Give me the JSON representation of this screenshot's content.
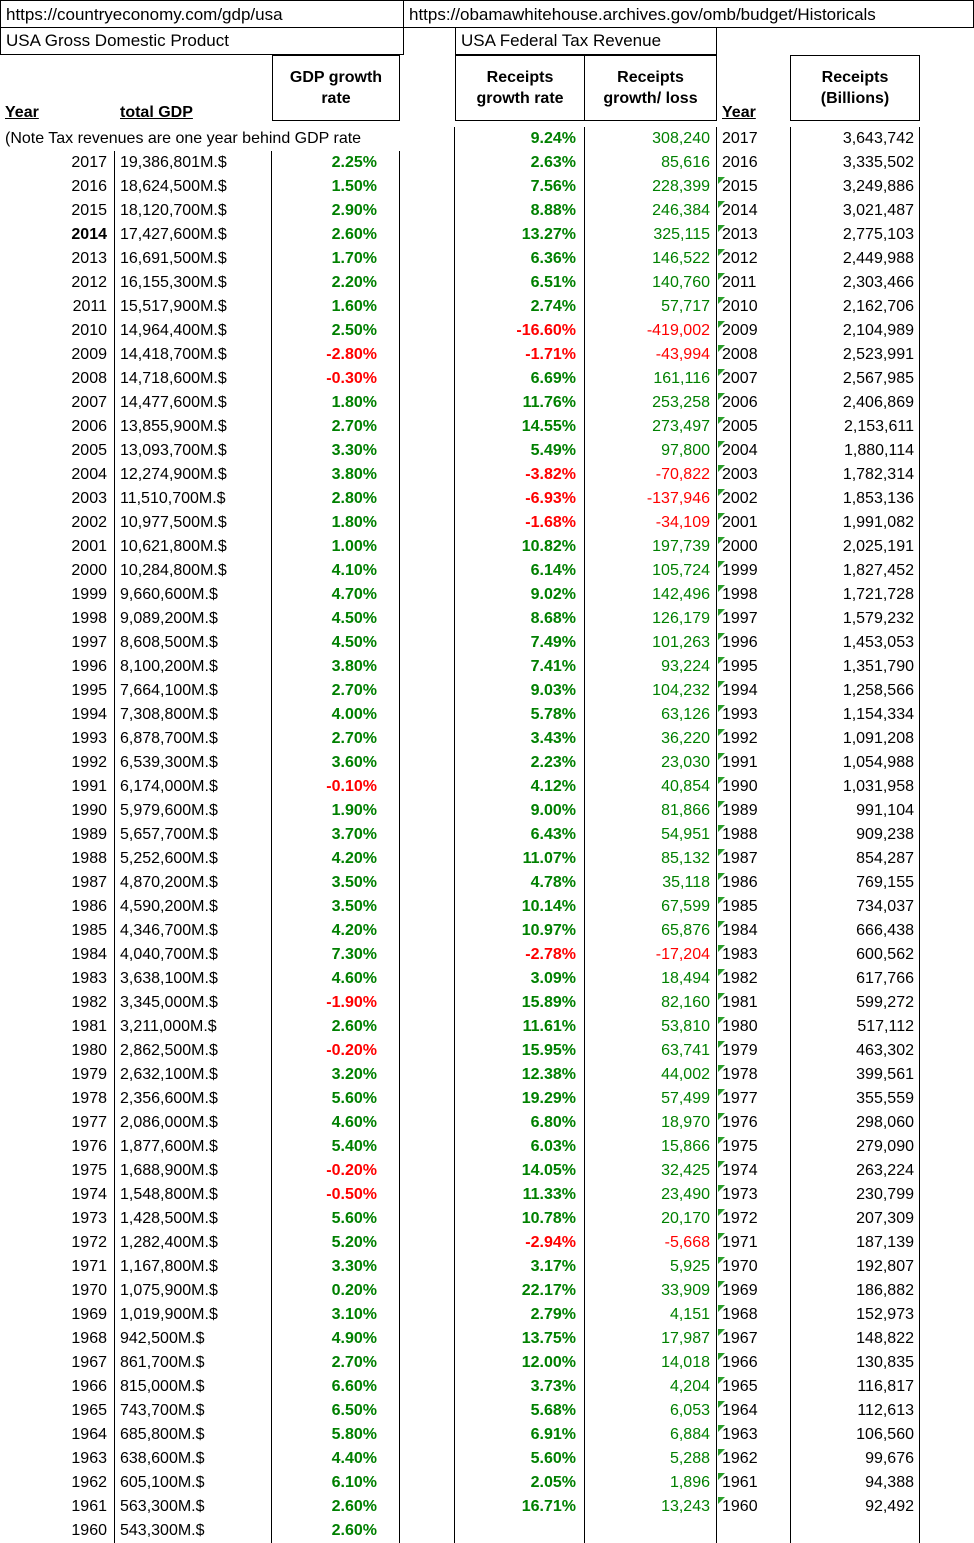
{
  "sources": {
    "gdp_url": "https://countryeconomy.com/gdp/usa",
    "tax_url": "https://obamawhitehouse.archives.gov/omb/budget/Historicals"
  },
  "colors": {
    "positive": "#008000",
    "negative": "#ff0000",
    "flag_indicator": "#2ca02c",
    "grid": "#000000"
  },
  "left_table": {
    "title": "USA Gross Domestic Product",
    "headers": {
      "year": "Year",
      "gdp": "total GDP",
      "growth": "GDP growth\nrate"
    },
    "note": "(Note Tax revenues are one year behind GDP rate",
    "rows": [
      {
        "year": "2017",
        "gdp": "19,386,801M.$",
        "rate": "2.25%"
      },
      {
        "year": "2016",
        "gdp": "18,624,500M.$",
        "rate": "1.50%"
      },
      {
        "year": "2015",
        "gdp": "18,120,700M.$",
        "rate": "2.90%"
      },
      {
        "year": "2014",
        "gdp": "17,427,600M.$",
        "rate": "2.60%",
        "bold": true
      },
      {
        "year": "2013",
        "gdp": "16,691,500M.$",
        "rate": "1.70%"
      },
      {
        "year": "2012",
        "gdp": "16,155,300M.$",
        "rate": "2.20%"
      },
      {
        "year": "2011",
        "gdp": "15,517,900M.$",
        "rate": "1.60%"
      },
      {
        "year": "2010",
        "gdp": "14,964,400M.$",
        "rate": "2.50%"
      },
      {
        "year": "2009",
        "gdp": "14,418,700M.$",
        "rate": "-2.80%"
      },
      {
        "year": "2008",
        "gdp": "14,718,600M.$",
        "rate": "-0.30%"
      },
      {
        "year": "2007",
        "gdp": "14,477,600M.$",
        "rate": "1.80%"
      },
      {
        "year": "2006",
        "gdp": "13,855,900M.$",
        "rate": "2.70%"
      },
      {
        "year": "2005",
        "gdp": "13,093,700M.$",
        "rate": "3.30%"
      },
      {
        "year": "2004",
        "gdp": "12,274,900M.$",
        "rate": "3.80%"
      },
      {
        "year": "2003",
        "gdp": "11,510,700M.$",
        "rate": "2.80%"
      },
      {
        "year": "2002",
        "gdp": "10,977,500M.$",
        "rate": "1.80%"
      },
      {
        "year": "2001",
        "gdp": "10,621,800M.$",
        "rate": "1.00%"
      },
      {
        "year": "2000",
        "gdp": "10,284,800M.$",
        "rate": "4.10%"
      },
      {
        "year": "1999",
        "gdp": "9,660,600M.$",
        "rate": "4.70%"
      },
      {
        "year": "1998",
        "gdp": "9,089,200M.$",
        "rate": "4.50%"
      },
      {
        "year": "1997",
        "gdp": "8,608,500M.$",
        "rate": "4.50%"
      },
      {
        "year": "1996",
        "gdp": "8,100,200M.$",
        "rate": "3.80%"
      },
      {
        "year": "1995",
        "gdp": "7,664,100M.$",
        "rate": "2.70%"
      },
      {
        "year": "1994",
        "gdp": "7,308,800M.$",
        "rate": "4.00%"
      },
      {
        "year": "1993",
        "gdp": "6,878,700M.$",
        "rate": "2.70%"
      },
      {
        "year": "1992",
        "gdp": "6,539,300M.$",
        "rate": "3.60%"
      },
      {
        "year": "1991",
        "gdp": "6,174,000M.$",
        "rate": "-0.10%"
      },
      {
        "year": "1990",
        "gdp": "5,979,600M.$",
        "rate": "1.90%"
      },
      {
        "year": "1989",
        "gdp": "5,657,700M.$",
        "rate": "3.70%"
      },
      {
        "year": "1988",
        "gdp": "5,252,600M.$",
        "rate": "4.20%"
      },
      {
        "year": "1987",
        "gdp": "4,870,200M.$",
        "rate": "3.50%"
      },
      {
        "year": "1986",
        "gdp": "4,590,200M.$",
        "rate": "3.50%"
      },
      {
        "year": "1985",
        "gdp": "4,346,700M.$",
        "rate": "4.20%"
      },
      {
        "year": "1984",
        "gdp": "4,040,700M.$",
        "rate": "7.30%"
      },
      {
        "year": "1983",
        "gdp": "3,638,100M.$",
        "rate": "4.60%"
      },
      {
        "year": "1982",
        "gdp": "3,345,000M.$",
        "rate": "-1.90%"
      },
      {
        "year": "1981",
        "gdp": "3,211,000M.$",
        "rate": "2.60%"
      },
      {
        "year": "1980",
        "gdp": "2,862,500M.$",
        "rate": "-0.20%"
      },
      {
        "year": "1979",
        "gdp": "2,632,100M.$",
        "rate": "3.20%"
      },
      {
        "year": "1978",
        "gdp": "2,356,600M.$",
        "rate": "5.60%"
      },
      {
        "year": "1977",
        "gdp": "2,086,000M.$",
        "rate": "4.60%"
      },
      {
        "year": "1976",
        "gdp": "1,877,600M.$",
        "rate": "5.40%"
      },
      {
        "year": "1975",
        "gdp": "1,688,900M.$",
        "rate": "-0.20%"
      },
      {
        "year": "1974",
        "gdp": "1,548,800M.$",
        "rate": "-0.50%"
      },
      {
        "year": "1973",
        "gdp": "1,428,500M.$",
        "rate": "5.60%"
      },
      {
        "year": "1972",
        "gdp": "1,282,400M.$",
        "rate": "5.20%"
      },
      {
        "year": "1971",
        "gdp": "1,167,800M.$",
        "rate": "3.30%"
      },
      {
        "year": "1970",
        "gdp": "1,075,900M.$",
        "rate": "0.20%"
      },
      {
        "year": "1969",
        "gdp": "1,019,900M.$",
        "rate": "3.10%"
      },
      {
        "year": "1968",
        "gdp": "942,500M.$",
        "rate": "4.90%"
      },
      {
        "year": "1967",
        "gdp": "861,700M.$",
        "rate": "2.70%"
      },
      {
        "year": "1966",
        "gdp": "815,000M.$",
        "rate": "6.60%"
      },
      {
        "year": "1965",
        "gdp": "743,700M.$",
        "rate": "6.50%"
      },
      {
        "year": "1964",
        "gdp": "685,800M.$",
        "rate": "5.80%"
      },
      {
        "year": "1963",
        "gdp": "638,600M.$",
        "rate": "4.40%"
      },
      {
        "year": "1962",
        "gdp": "605,100M.$",
        "rate": "6.10%"
      },
      {
        "year": "1961",
        "gdp": "563,300M.$",
        "rate": "2.60%"
      },
      {
        "year": "1960",
        "gdp": "543,300M.$",
        "rate": "2.60%"
      }
    ]
  },
  "right_table": {
    "title": "USA Federal Tax Revenue",
    "headers": {
      "rate": "Receipts\ngrowth rate",
      "loss": "Receipts\ngrowth/ loss",
      "year": "Year",
      "receipts": "Receipts\n(Billions)"
    },
    "rows": [
      {
        "rate": "9.24%",
        "loss": "308,240",
        "year": "2017",
        "receipts": "3,643,742",
        "flag": false
      },
      {
        "rate": "2.63%",
        "loss": "85,616",
        "year": "2016",
        "receipts": "3,335,502",
        "flag": false
      },
      {
        "rate": "7.56%",
        "loss": "228,399",
        "year": "2015",
        "receipts": "3,249,886",
        "flag": true
      },
      {
        "rate": "8.88%",
        "loss": "246,384",
        "year": "2014",
        "receipts": "3,021,487",
        "flag": true
      },
      {
        "rate": "13.27%",
        "loss": "325,115",
        "year": "2013",
        "receipts": "2,775,103",
        "flag": true
      },
      {
        "rate": "6.36%",
        "loss": "146,522",
        "year": "2012",
        "receipts": "2,449,988",
        "flag": true
      },
      {
        "rate": "6.51%",
        "loss": "140,760",
        "year": "2011",
        "receipts": "2,303,466",
        "flag": true
      },
      {
        "rate": "2.74%",
        "loss": "57,717",
        "year": "2010",
        "receipts": "2,162,706",
        "flag": true
      },
      {
        "rate": "-16.60%",
        "loss": "-419,002",
        "year": "2009",
        "receipts": "2,104,989",
        "flag": true
      },
      {
        "rate": "-1.71%",
        "loss": "-43,994",
        "year": "2008",
        "receipts": "2,523,991",
        "flag": true
      },
      {
        "rate": "6.69%",
        "loss": "161,116",
        "year": "2007",
        "receipts": "2,567,985",
        "flag": true
      },
      {
        "rate": "11.76%",
        "loss": "253,258",
        "year": "2006",
        "receipts": "2,406,869",
        "flag": true
      },
      {
        "rate": "14.55%",
        "loss": "273,497",
        "year": "2005",
        "receipts": "2,153,611",
        "flag": true
      },
      {
        "rate": "5.49%",
        "loss": "97,800",
        "year": "2004",
        "receipts": "1,880,114",
        "flag": true
      },
      {
        "rate": "-3.82%",
        "loss": "-70,822",
        "year": "2003",
        "receipts": "1,782,314",
        "flag": true
      },
      {
        "rate": "-6.93%",
        "loss": "-137,946",
        "year": "2002",
        "receipts": "1,853,136",
        "flag": true
      },
      {
        "rate": "-1.68%",
        "loss": "-34,109",
        "year": "2001",
        "receipts": "1,991,082",
        "flag": true
      },
      {
        "rate": "10.82%",
        "loss": "197,739",
        "year": "2000",
        "receipts": "2,025,191",
        "flag": true
      },
      {
        "rate": "6.14%",
        "loss": "105,724",
        "year": "1999",
        "receipts": "1,827,452",
        "flag": true
      },
      {
        "rate": "9.02%",
        "loss": "142,496",
        "year": "1998",
        "receipts": "1,721,728",
        "flag": true
      },
      {
        "rate": "8.68%",
        "loss": "126,179",
        "year": "1997",
        "receipts": "1,579,232",
        "flag": true
      },
      {
        "rate": "7.49%",
        "loss": "101,263",
        "year": "1996",
        "receipts": "1,453,053",
        "flag": true
      },
      {
        "rate": "7.41%",
        "loss": "93,224",
        "year": "1995",
        "receipts": "1,351,790",
        "flag": true
      },
      {
        "rate": "9.03%",
        "loss": "104,232",
        "year": "1994",
        "receipts": "1,258,566",
        "flag": true
      },
      {
        "rate": "5.78%",
        "loss": "63,126",
        "year": "1993",
        "receipts": "1,154,334",
        "flag": true
      },
      {
        "rate": "3.43%",
        "loss": "36,220",
        "year": "1992",
        "receipts": "1,091,208",
        "flag": true
      },
      {
        "rate": "2.23%",
        "loss": "23,030",
        "year": "1991",
        "receipts": "1,054,988",
        "flag": true
      },
      {
        "rate": "4.12%",
        "loss": "40,854",
        "year": "1990",
        "receipts": "1,031,958",
        "flag": true
      },
      {
        "rate": "9.00%",
        "loss": "81,866",
        "year": "1989",
        "receipts": "991,104",
        "flag": true
      },
      {
        "rate": "6.43%",
        "loss": "54,951",
        "year": "1988",
        "receipts": "909,238",
        "flag": true
      },
      {
        "rate": "11.07%",
        "loss": "85,132",
        "year": "1987",
        "receipts": "854,287",
        "flag": true
      },
      {
        "rate": "4.78%",
        "loss": "35,118",
        "year": "1986",
        "receipts": "769,155",
        "flag": true
      },
      {
        "rate": "10.14%",
        "loss": "67,599",
        "year": "1985",
        "receipts": "734,037",
        "flag": true
      },
      {
        "rate": "10.97%",
        "loss": "65,876",
        "year": "1984",
        "receipts": "666,438",
        "flag": true
      },
      {
        "rate": "-2.78%",
        "loss": "-17,204",
        "year": "1983",
        "receipts": "600,562",
        "flag": true
      },
      {
        "rate": "3.09%",
        "loss": "18,494",
        "year": "1982",
        "receipts": "617,766",
        "flag": true
      },
      {
        "rate": "15.89%",
        "loss": "82,160",
        "year": "1981",
        "receipts": "599,272",
        "flag": true
      },
      {
        "rate": "11.61%",
        "loss": "53,810",
        "year": "1980",
        "receipts": "517,112",
        "flag": true
      },
      {
        "rate": "15.95%",
        "loss": "63,741",
        "year": "1979",
        "receipts": "463,302",
        "flag": true
      },
      {
        "rate": "12.38%",
        "loss": "44,002",
        "year": "1978",
        "receipts": "399,561",
        "flag": true
      },
      {
        "rate": "19.29%",
        "loss": "57,499",
        "year": "1977",
        "receipts": "355,559",
        "flag": true
      },
      {
        "rate": "6.80%",
        "loss": "18,970",
        "year": "1976",
        "receipts": "298,060",
        "flag": true
      },
      {
        "rate": "6.03%",
        "loss": "15,866",
        "year": "1975",
        "receipts": "279,090",
        "flag": true
      },
      {
        "rate": "14.05%",
        "loss": "32,425",
        "year": "1974",
        "receipts": "263,224",
        "flag": true
      },
      {
        "rate": "11.33%",
        "loss": "23,490",
        "year": "1973",
        "receipts": "230,799",
        "flag": true
      },
      {
        "rate": "10.78%",
        "loss": "20,170",
        "year": "1972",
        "receipts": "207,309",
        "flag": true
      },
      {
        "rate": "-2.94%",
        "loss": "-5,668",
        "year": "1971",
        "receipts": "187,139",
        "flag": true
      },
      {
        "rate": "3.17%",
        "loss": "5,925",
        "year": "1970",
        "receipts": "192,807",
        "flag": true
      },
      {
        "rate": "22.17%",
        "loss": "33,909",
        "year": "1969",
        "receipts": "186,882",
        "flag": true
      },
      {
        "rate": "2.79%",
        "loss": "4,151",
        "year": "1968",
        "receipts": "152,973",
        "flag": true
      },
      {
        "rate": "13.75%",
        "loss": "17,987",
        "year": "1967",
        "receipts": "148,822",
        "flag": true
      },
      {
        "rate": "12.00%",
        "loss": "14,018",
        "year": "1966",
        "receipts": "130,835",
        "flag": true
      },
      {
        "rate": "3.73%",
        "loss": "4,204",
        "year": "1965",
        "receipts": "116,817",
        "flag": true
      },
      {
        "rate": "5.68%",
        "loss": "6,053",
        "year": "1964",
        "receipts": "112,613",
        "flag": true
      },
      {
        "rate": "6.91%",
        "loss": "6,884",
        "year": "1963",
        "receipts": "106,560",
        "flag": true
      },
      {
        "rate": "5.60%",
        "loss": "5,288",
        "year": "1962",
        "receipts": "99,676",
        "flag": true
      },
      {
        "rate": "2.05%",
        "loss": "1,896",
        "year": "1961",
        "receipts": "94,388",
        "flag": true
      },
      {
        "rate": "16.71%",
        "loss": "13,243",
        "year": "1960",
        "receipts": "92,492",
        "flag": true
      }
    ]
  }
}
